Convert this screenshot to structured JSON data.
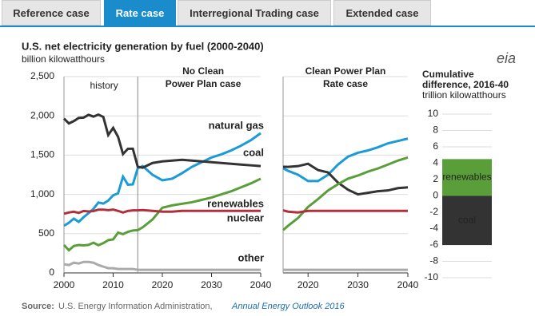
{
  "tabs": [
    "Reference case",
    "Rate case",
    "Interregional Trading case",
    "Extended case"
  ],
  "active_tab": 1,
  "logo": "eia",
  "source": {
    "label": "Source:",
    "text": "U.S. Energy Information Administration,",
    "link": "Annual Energy Outlook 2016"
  },
  "chart_data": [
    {
      "type": "line",
      "title": "U.S. net electricity generation by fuel (2000-2040)",
      "subtitle": "billion kilowatthours",
      "annotations": [
        "history"
      ],
      "panel_title": [
        "No Clean",
        "Power Plan case"
      ],
      "history_end": 2015,
      "x": [
        2000,
        2001,
        2002,
        2003,
        2004,
        2005,
        2006,
        2007,
        2008,
        2009,
        2010,
        2011,
        2012,
        2013,
        2014,
        2015,
        2016,
        2018,
        2020,
        2022,
        2024,
        2026,
        2028,
        2030,
        2032,
        2034,
        2036,
        2038,
        2040
      ],
      "series": [
        {
          "name": "natural gas",
          "color": "#1a9bd7",
          "values": [
            601,
            639,
            691,
            650,
            710,
            761,
            816,
            897,
            883,
            921,
            988,
            1014,
            1226,
            1124,
            1127,
            1333,
            1360,
            1250,
            1180,
            1200,
            1270,
            1350,
            1410,
            1470,
            1510,
            1560,
            1620,
            1690,
            1780
          ]
        },
        {
          "name": "coal",
          "color": "#333333",
          "values": [
            1966,
            1904,
            1933,
            1974,
            1978,
            2013,
            1991,
            2016,
            1986,
            1756,
            1847,
            1733,
            1514,
            1581,
            1582,
            1352,
            1340,
            1400,
            1420,
            1430,
            1440,
            1430,
            1420,
            1410,
            1400,
            1390,
            1380,
            1370,
            1360
          ]
        },
        {
          "name": "renewables",
          "color": "#5a9e3a",
          "values": [
            356,
            288,
            343,
            355,
            351,
            357,
            385,
            352,
            380,
            417,
            427,
            513,
            494,
            523,
            540,
            545,
            580,
            680,
            830,
            860,
            880,
            900,
            930,
            960,
            1000,
            1040,
            1090,
            1140,
            1200
          ]
        },
        {
          "name": "nuclear",
          "color": "#b0303d",
          "values": [
            754,
            769,
            780,
            764,
            789,
            782,
            787,
            806,
            806,
            799,
            807,
            790,
            769,
            789,
            797,
            797,
            800,
            790,
            780,
            780,
            790,
            790,
            790,
            790,
            790,
            790,
            790,
            790,
            790
          ]
        },
        {
          "name": "other",
          "color": "#aaaaaa",
          "values": [
            110,
            100,
            130,
            120,
            140,
            140,
            130,
            100,
            80,
            60,
            60,
            50,
            50,
            50,
            50,
            40,
            40,
            40,
            40,
            40,
            40,
            40,
            40,
            40,
            40,
            40,
            40,
            40,
            40
          ]
        }
      ],
      "xlim": [
        2000,
        2040
      ],
      "xticks": [
        2000,
        2010,
        2020,
        2030,
        2040
      ],
      "ylim": [
        0,
        2500
      ],
      "yticks": [
        0,
        500,
        {
          "value": 1000,
          "label": "1,000"
        },
        {
          "value": 1500,
          "label": "1,500"
        },
        {
          "value": 2000,
          "label": "2,000"
        },
        {
          "value": 2500,
          "label": "2,500"
        }
      ],
      "grid": true
    },
    {
      "type": "line",
      "panel_title": [
        "Clean Power Plan",
        "Rate case"
      ],
      "x": [
        2015,
        2016,
        2018,
        2020,
        2022,
        2024,
        2026,
        2028,
        2030,
        2032,
        2034,
        2036,
        2038,
        2040
      ],
      "series": [
        {
          "color": "#1a9bd7",
          "values": [
            1333,
            1300,
            1250,
            1170,
            1170,
            1250,
            1380,
            1480,
            1530,
            1560,
            1600,
            1650,
            1680,
            1710
          ]
        },
        {
          "color": "#333333",
          "values": [
            1352,
            1350,
            1360,
            1390,
            1310,
            1280,
            1150,
            1060,
            1000,
            1020,
            1040,
            1050,
            1080,
            1090
          ]
        },
        {
          "color": "#5a9e3a",
          "values": [
            545,
            600,
            700,
            840,
            940,
            1050,
            1130,
            1200,
            1240,
            1290,
            1330,
            1380,
            1430,
            1470
          ]
        },
        {
          "color": "#b0303d",
          "values": [
            797,
            780,
            770,
            790,
            790,
            790,
            790,
            790,
            790,
            790,
            790,
            790,
            790,
            790
          ]
        },
        {
          "color": "#aaaaaa",
          "values": [
            40,
            40,
            40,
            40,
            40,
            40,
            40,
            40,
            40,
            40,
            40,
            40,
            40,
            40
          ]
        }
      ],
      "xlim": [
        2015,
        2040
      ],
      "xticks": [
        2020,
        2030,
        2040
      ],
      "ylim": [
        0,
        2500
      ]
    },
    {
      "type": "bar",
      "title": [
        "Cumulative",
        "difference, 2016-40"
      ],
      "subtitle": "trillion kilowatthours",
      "categories": [
        "renewables",
        "coal"
      ],
      "values": [
        4.5,
        -6
      ],
      "colors": [
        "#5a9e3a",
        "#333333"
      ],
      "ylim": [
        -10,
        10
      ],
      "yticks": [
        -10,
        -8,
        -6,
        -4,
        -2,
        0,
        2,
        4,
        6,
        8,
        10
      ],
      "grid": true
    }
  ]
}
